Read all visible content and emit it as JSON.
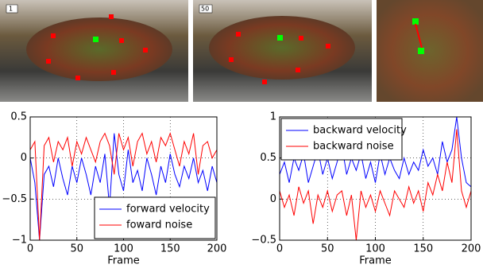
{
  "images": [
    {
      "label": "1"
    },
    {
      "label": "50"
    }
  ],
  "chart_data": [
    {
      "type": "line",
      "xlabel": "Frame",
      "x": [
        0,
        5,
        10,
        15,
        20,
        25,
        30,
        35,
        40,
        45,
        50,
        55,
        60,
        65,
        70,
        75,
        80,
        85,
        90,
        95,
        100,
        105,
        110,
        115,
        120,
        125,
        130,
        135,
        140,
        145,
        150,
        155,
        160,
        165,
        170,
        175,
        180,
        185,
        190,
        195,
        200
      ],
      "series": [
        {
          "name": "forward velocity",
          "color": "#0000ff",
          "values": [
            0,
            -0.3,
            -1,
            -0.2,
            -0.1,
            -0.35,
            0,
            -0.25,
            -0.45,
            -0.1,
            -0.3,
            0,
            -0.2,
            -0.45,
            -0.1,
            -0.3,
            0.05,
            -0.6,
            0.3,
            -0.2,
            -0.4,
            0.1,
            -0.3,
            -0.15,
            -0.4,
            0,
            -0.2,
            -0.45,
            -0.1,
            -0.3,
            0.05,
            -0.2,
            -0.35,
            -0.1,
            -0.25,
            0,
            -0.3,
            -0.15,
            -0.4,
            -0.1,
            -0.3
          ]
        },
        {
          "name": "foward noise",
          "color": "#ff0000",
          "values": [
            0.1,
            0.2,
            -1,
            0.15,
            0.25,
            -0.05,
            0.2,
            0.1,
            0.25,
            -0.1,
            0.2,
            0.05,
            0.25,
            0.1,
            -0.05,
            0.2,
            0.3,
            0.15,
            -0.2,
            0.3,
            0.1,
            0.25,
            -0.1,
            0.2,
            0.3,
            0.05,
            0.2,
            -0.05,
            0.25,
            0.15,
            0.3,
            0.1,
            -0.1,
            0.2,
            0.05,
            0.3,
            -0.2,
            0.15,
            0.2,
            0,
            0.1
          ]
        }
      ],
      "xlim": [
        0,
        200
      ],
      "xticks": [
        0,
        50,
        100,
        150,
        200
      ],
      "ylim": [
        -1,
        0.5
      ],
      "yticks": [
        {
          "value": -1,
          "label": "−1"
        },
        {
          "value": -0.5,
          "label": "−0.5"
        },
        0,
        0.5
      ],
      "grid": true,
      "legend": "lower right"
    },
    {
      "type": "line",
      "xlabel": "Frame",
      "x": [
        0,
        5,
        10,
        15,
        20,
        25,
        30,
        35,
        40,
        45,
        50,
        55,
        60,
        65,
        70,
        75,
        80,
        85,
        90,
        95,
        100,
        105,
        110,
        115,
        120,
        125,
        130,
        135,
        140,
        145,
        150,
        155,
        160,
        165,
        170,
        175,
        180,
        185,
        190,
        195,
        200
      ],
      "series": [
        {
          "name": "backward velocity",
          "color": "#0000ff",
          "values": [
            0.3,
            0.45,
            0.2,
            0.5,
            0.35,
            0.55,
            0.2,
            0.4,
            0.6,
            0.3,
            0.5,
            0.25,
            0.45,
            0.65,
            0.3,
            0.5,
            0.35,
            0.55,
            0.25,
            0.45,
            0.2,
            0.55,
            0.3,
            0.5,
            0.35,
            0.25,
            0.5,
            0.3,
            0.45,
            0.35,
            0.6,
            0.4,
            0.5,
            0.3,
            0.7,
            0.45,
            0.6,
            1,
            0.5,
            0.2,
            0.15
          ]
        },
        {
          "name": "backward noise",
          "color": "#ff0000",
          "values": [
            0.1,
            -0.1,
            0.05,
            -0.2,
            0.15,
            -0.05,
            0.1,
            -0.3,
            0.05,
            -0.1,
            0.1,
            -0.15,
            0.05,
            0.1,
            -0.2,
            0.05,
            -0.5,
            0.1,
            -0.1,
            0.05,
            -0.15,
            0.1,
            -0.05,
            -0.2,
            0.1,
            0,
            -0.1,
            0.15,
            -0.05,
            0.1,
            -0.15,
            0.2,
            0.05,
            0.3,
            0.1,
            0.45,
            0.2,
            0.85,
            0.1,
            -0.1,
            0.1
          ]
        }
      ],
      "xlim": [
        0,
        200
      ],
      "xticks": [
        0,
        50,
        100,
        150,
        200
      ],
      "ylim": [
        -0.5,
        1
      ],
      "yticks": [
        {
          "value": -0.5,
          "label": "−0.5"
        },
        0,
        0.5,
        1
      ],
      "grid": true,
      "legend": "upper left"
    }
  ]
}
